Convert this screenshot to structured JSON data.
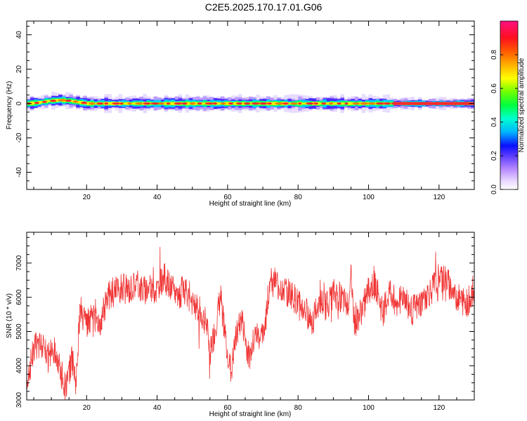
{
  "figure": {
    "title": "C2E5.2025.170.17.01.G06"
  },
  "chart_data": [
    {
      "type": "heatmap",
      "xlabel": "Height of straight line (km)",
      "ylabel": "Frequency (Hz)",
      "xlim": [
        3,
        130
      ],
      "ylim": [
        -50,
        48
      ],
      "x_ticks": [
        20,
        40,
        60,
        80,
        100,
        120
      ],
      "y_ticks": [
        -40,
        -20,
        0,
        20,
        40
      ],
      "ridge": {
        "description_points_x": [
          3,
          6,
          9,
          12,
          15,
          18,
          20,
          30,
          40,
          50,
          60,
          70,
          80,
          90,
          100,
          110,
          120,
          130
        ],
        "frequency_hz": [
          0,
          0.5,
          1.5,
          2,
          1.5,
          0.5,
          0,
          0,
          0,
          0,
          0,
          0,
          0,
          0,
          0,
          0,
          0,
          0
        ]
      },
      "colorbar": {
        "label": "Normalized spectral amplitude",
        "ticks": [
          0.0,
          0.2,
          0.4,
          0.6,
          0.8
        ],
        "tick_labels": [
          "0.0",
          "0.2",
          "0.4",
          "0.6",
          "0.8"
        ],
        "range": [
          0,
          1
        ]
      }
    },
    {
      "type": "line",
      "xlabel": "Height of straight line (km)",
      "ylabel": "SNR (10 * v/v)",
      "xlim": [
        3,
        130
      ],
      "ylim": [
        3000,
        7900
      ],
      "x_ticks": [
        20,
        40,
        60,
        80,
        100,
        120
      ],
      "y_ticks": [
        3000,
        4000,
        5000,
        6000,
        7000
      ],
      "series": [
        {
          "color": "#f03535",
          "x": [
            3,
            5,
            7,
            9,
            11,
            13,
            14,
            15,
            16,
            17,
            18,
            20,
            22,
            24,
            26,
            28,
            30,
            32,
            34,
            36,
            38,
            40,
            42,
            44,
            46,
            48,
            50,
            52,
            54,
            55,
            56,
            58,
            60,
            61,
            62,
            64,
            66,
            68,
            70,
            72,
            74,
            76,
            78,
            80,
            82,
            84,
            86,
            88,
            90,
            92,
            94,
            95,
            96,
            98,
            100,
            102,
            104,
            106,
            108,
            110,
            112,
            114,
            116,
            118,
            120,
            122,
            124,
            126,
            128,
            130
          ],
          "y": [
            3500,
            4500,
            4600,
            4200,
            4500,
            3700,
            3300,
            3900,
            4200,
            3500,
            5400,
            5200,
            5400,
            5300,
            6000,
            6200,
            6300,
            6200,
            6400,
            6200,
            6300,
            6200,
            6600,
            6200,
            6100,
            6200,
            5900,
            5600,
            5200,
            4400,
            4800,
            6000,
            4400,
            3800,
            4600,
            5400,
            4200,
            4900,
            4800,
            6500,
            6400,
            6200,
            6100,
            5800,
            5600,
            5300,
            5900,
            5700,
            6100,
            6000,
            5700,
            6700,
            5200,
            5600,
            6200,
            6400,
            5500,
            6200,
            5800,
            6100,
            5600,
            5700,
            6000,
            6200,
            6600,
            6500,
            6100,
            5900,
            5800,
            6300
          ]
        }
      ]
    }
  ]
}
